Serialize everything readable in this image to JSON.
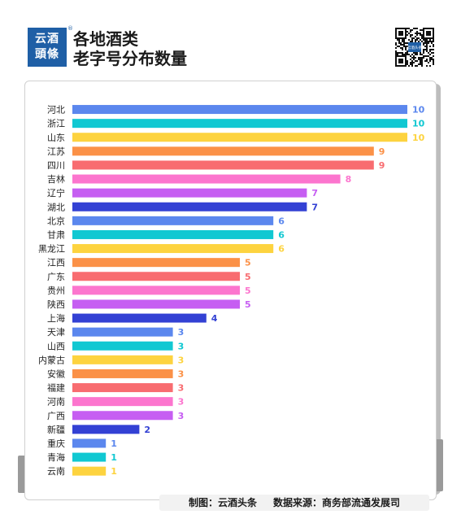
{
  "brand": {
    "logo_line1": "云酒",
    "logo_line2": "頭條",
    "reg_mark": "®",
    "qr_caption": "云酒头条"
  },
  "header": {
    "title_line1": "各地酒类",
    "title_line2": "老字号分布数量"
  },
  "footer": {
    "maker": "制图：云酒头条",
    "source": "数据来源：商务部流通发展司"
  },
  "chart_data": {
    "type": "bar",
    "orientation": "horizontal",
    "title": "",
    "xlabel": "",
    "ylabel": "",
    "xlim": [
      0,
      10
    ],
    "grid": false,
    "legend": "none",
    "categories": [
      "河北",
      "浙江",
      "山东",
      "江苏",
      "四川",
      "吉林",
      "辽宁",
      "湖北",
      "北京",
      "甘肃",
      "黑龙江",
      "江西",
      "广东",
      "贵州",
      "陕西",
      "上海",
      "天津",
      "山西",
      "内蒙古",
      "安徽",
      "福建",
      "河南",
      "广西",
      "新疆",
      "重庆",
      "青海",
      "云南"
    ],
    "values": [
      10,
      10,
      10,
      9,
      9,
      8,
      7,
      7,
      6,
      6,
      6,
      5,
      5,
      5,
      5,
      4,
      3,
      3,
      3,
      3,
      3,
      3,
      3,
      2,
      1,
      1,
      1
    ],
    "colors": [
      "#5b87ee",
      "#11c8d2",
      "#fdd33f",
      "#fb9147",
      "#f86c70",
      "#fc75ce",
      "#c65ef2",
      "#3341d4"
    ]
  }
}
